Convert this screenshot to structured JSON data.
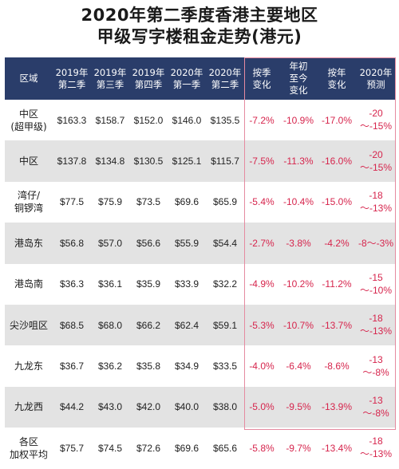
{
  "title": {
    "line1": "2020年第二季度香港主要地区",
    "line2": "甲级写字楼租金走势(港元)"
  },
  "headers": [
    [
      "区域"
    ],
    [
      "2019年",
      "第二季"
    ],
    [
      "2019年",
      "第三季"
    ],
    [
      "2019年",
      "第四季"
    ],
    [
      "2020年",
      "第一季"
    ],
    [
      "2020年",
      "第二季"
    ],
    [
      "按季",
      "变化"
    ],
    [
      "年初",
      "至今",
      "变化"
    ],
    [
      "按年",
      "变化"
    ],
    [
      "2020年",
      "预测"
    ]
  ],
  "rows": [
    {
      "region": [
        "中区",
        "(超甲级)"
      ],
      "values": [
        "$163.3",
        "$158.7",
        "$152.0",
        "$146.0",
        "$135.5"
      ],
      "changes": [
        "-7.2%",
        "-10.9%",
        "-17.0%",
        "-20～-15%"
      ]
    },
    {
      "region": [
        "中区"
      ],
      "values": [
        "$137.8",
        "$134.8",
        "$130.5",
        "$125.1",
        "$115.7"
      ],
      "changes": [
        "-7.5%",
        "-11.3%",
        "-16.0%",
        "-20～-15%"
      ]
    },
    {
      "region": [
        "湾仔/",
        "铜锣湾"
      ],
      "values": [
        "$77.5",
        "$75.9",
        "$73.5",
        "$69.6",
        "$65.9"
      ],
      "changes": [
        "-5.4%",
        "-10.4%",
        "-15.0%",
        "-18～-13%"
      ]
    },
    {
      "region": [
        "港岛东"
      ],
      "values": [
        "$56.8",
        "$57.0",
        "$56.6",
        "$55.9",
        "$54.4"
      ],
      "changes": [
        "-2.7%",
        "-3.8%",
        "-4.2%",
        "-8～-3%"
      ]
    },
    {
      "region": [
        "港岛南"
      ],
      "values": [
        "$36.3",
        "$36.1",
        "$35.9",
        "$33.9",
        "$32.2"
      ],
      "changes": [
        "-4.9%",
        "-10.2%",
        "-11.2%",
        "-15～-10%"
      ]
    },
    {
      "region": [
        "尖沙咀区"
      ],
      "values": [
        "$68.5",
        "$68.0",
        "$66.2",
        "$62.4",
        "$59.1"
      ],
      "changes": [
        "-5.3%",
        "-10.7%",
        "-13.7%",
        "-18～-13%"
      ]
    },
    {
      "region": [
        "九龙东"
      ],
      "values": [
        "$36.7",
        "$36.2",
        "$35.8",
        "$34.9",
        "$33.5"
      ],
      "changes": [
        "-4.0%",
        "-6.4%",
        "-8.6%",
        "-13～-8%"
      ]
    },
    {
      "region": [
        "九龙西"
      ],
      "values": [
        "$44.2",
        "$43.0",
        "$42.0",
        "$40.0",
        "$38.0"
      ],
      "changes": [
        "-5.0%",
        "-9.5%",
        "-13.9%",
        "-13～-8%"
      ]
    },
    {
      "region": [
        "各区",
        "加权平均"
      ],
      "values": [
        "$75.7",
        "$74.5",
        "$72.6",
        "$69.6",
        "$65.6"
      ],
      "changes": [
        "-5.8%",
        "-9.7%",
        "-13.4%",
        "-18～-13%"
      ]
    }
  ],
  "colors": {
    "header_bg": "#2a3d6a",
    "shade_row": "#e3e3e3",
    "negative_text": "#d6244c",
    "highlight_border": "#e58aa0"
  }
}
